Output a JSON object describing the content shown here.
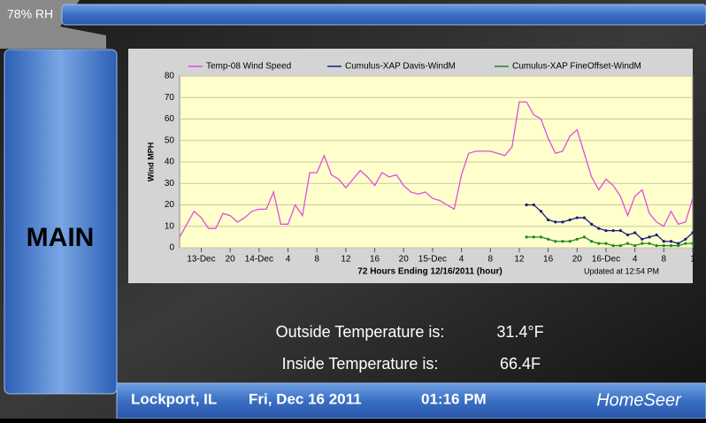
{
  "status": {
    "humidity": "78% RH"
  },
  "nav": {
    "page": "MAIN"
  },
  "readings": [
    {
      "label": "Outside Temperature is:",
      "value": "31.4°F"
    },
    {
      "label": "Inside Temperature is:",
      "value": "66.4F"
    }
  ],
  "footer": {
    "location": "Lockport, IL",
    "date": "Fri, Dec 16 2011",
    "time": "01:16 PM",
    "brand": "HomeSeer"
  },
  "chart_data": {
    "type": "line",
    "y_label": "Wind MPH",
    "x_label": "72 Hours Ending 12/16/2011 (hour)",
    "note": "Updated at 12:54 PM",
    "xlim": [
      13,
      84
    ],
    "ylim": [
      0,
      80
    ],
    "yticks": [
      0,
      10,
      20,
      30,
      40,
      50,
      60,
      70,
      80
    ],
    "xticks": [
      {
        "value": 16,
        "label": "13-Dec"
      },
      20,
      {
        "value": 24,
        "label": "14-Dec"
      },
      {
        "value": 28,
        "label": "4"
      },
      {
        "value": 32,
        "label": "8"
      },
      {
        "value": 36,
        "label": "12"
      },
      {
        "value": 40,
        "label": "16"
      },
      {
        "value": 44,
        "label": "20"
      },
      {
        "value": 48,
        "label": "15-Dec"
      },
      {
        "value": 52,
        "label": "4"
      },
      {
        "value": 56,
        "label": "8"
      },
      {
        "value": 60,
        "label": "12"
      },
      {
        "value": 64,
        "label": "16"
      },
      {
        "value": 68,
        "label": "20"
      },
      {
        "value": 72,
        "label": "16-Dec"
      },
      {
        "value": 76,
        "label": "4"
      },
      {
        "value": 80,
        "label": "8"
      },
      {
        "value": 84,
        "label": "1"
      }
    ],
    "grid": true,
    "x": [
      13,
      14,
      15,
      16,
      17,
      18,
      19,
      20,
      21,
      22,
      23,
      24,
      25,
      26,
      27,
      28,
      29,
      30,
      31,
      32,
      33,
      34,
      35,
      36,
      37,
      38,
      39,
      40,
      41,
      42,
      43,
      44,
      45,
      46,
      47,
      48,
      49,
      50,
      51,
      52,
      53,
      54,
      55,
      56,
      57,
      58,
      59,
      60,
      61,
      62,
      63,
      64,
      65,
      66,
      67,
      68,
      69,
      70,
      71,
      72,
      73,
      74,
      75,
      76,
      77,
      78,
      79,
      80,
      81,
      82,
      83,
      84
    ],
    "series": [
      {
        "name": "Temp-08 Wind Speed",
        "color": "#e04ce0",
        "values": [
          5,
          11,
          17,
          14,
          9,
          9,
          16,
          15,
          12,
          14,
          17,
          18,
          18,
          26,
          11,
          11,
          20,
          15,
          35,
          35,
          43,
          34,
          32,
          28,
          32,
          36,
          33,
          29,
          35,
          33,
          34,
          29,
          26,
          25,
          26,
          23,
          22,
          20,
          18,
          34,
          44,
          45,
          45,
          45,
          44,
          43,
          47,
          68,
          68,
          62,
          60,
          51,
          44,
          45,
          52,
          55,
          44,
          33,
          27,
          32,
          29,
          24,
          15,
          24,
          27,
          16,
          12,
          10,
          17,
          11,
          12,
          23
        ]
      },
      {
        "name": "Cumulus-XAP Davis-WindM",
        "color": "#1c1c78",
        "values": [
          null,
          null,
          null,
          null,
          null,
          null,
          null,
          null,
          null,
          null,
          null,
          null,
          null,
          null,
          null,
          null,
          null,
          null,
          null,
          null,
          null,
          null,
          null,
          null,
          null,
          null,
          null,
          null,
          null,
          null,
          null,
          null,
          null,
          null,
          null,
          null,
          null,
          null,
          null,
          null,
          null,
          null,
          null,
          null,
          null,
          null,
          null,
          null,
          20,
          20,
          17,
          13,
          12,
          12,
          13,
          14,
          14,
          11,
          9,
          8,
          8,
          8,
          6,
          7,
          4,
          5,
          6,
          3,
          3,
          2,
          4,
          7
        ]
      },
      {
        "name": "Cumulus-XAP FineOffset-WindM",
        "color": "#1d8a1d",
        "values": [
          null,
          null,
          null,
          null,
          null,
          null,
          null,
          null,
          null,
          null,
          null,
          null,
          null,
          null,
          null,
          null,
          null,
          null,
          null,
          null,
          null,
          null,
          null,
          null,
          null,
          null,
          null,
          null,
          null,
          null,
          null,
          null,
          null,
          null,
          null,
          null,
          null,
          null,
          null,
          null,
          null,
          null,
          null,
          null,
          null,
          null,
          null,
          null,
          5,
          5,
          5,
          4,
          3,
          3,
          3,
          4,
          5,
          3,
          2,
          2,
          1,
          1,
          2,
          1,
          2,
          2,
          1,
          1,
          1,
          1,
          2,
          2
        ]
      }
    ]
  }
}
